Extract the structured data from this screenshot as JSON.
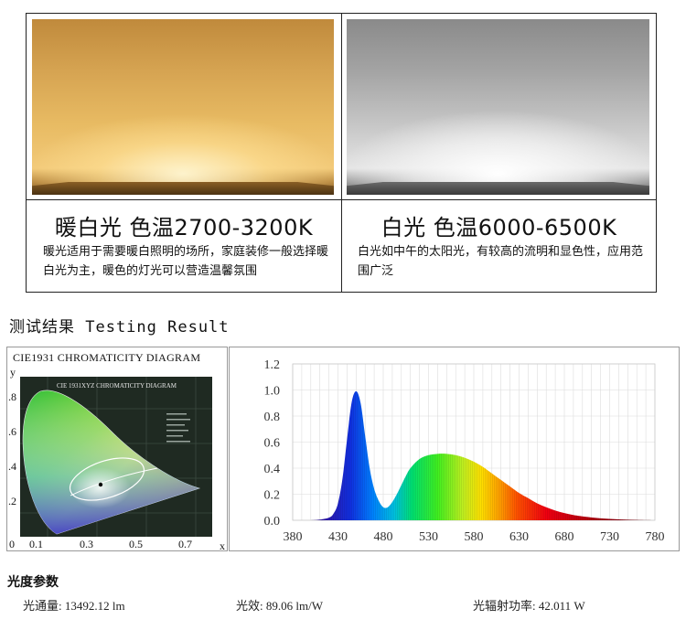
{
  "comparison": {
    "warm": {
      "title": "暖白光 色温2700-3200K",
      "description": "暖光适用于需要暖白照明的场所，家庭装修一般选择暖白光为主，暖色的灯光可以营造温馨氛围"
    },
    "cool": {
      "title": "白光 色温6000-6500K",
      "description": "白光如中午的太阳光，有较高的流明和显色性，应用范围广泛"
    }
  },
  "result_heading": "测试结果 Testing Result",
  "cie": {
    "title": "CIE1931 CHROMATICITY DIAGRAM",
    "inner_title": "CIE 1931XYZ CHROMATICITY DIAGRAM",
    "ylabel": "y",
    "xlabel": "x",
    "yticks": [
      ".8",
      ".6",
      ".4",
      ".2"
    ],
    "xticks": [
      "0",
      "0.1",
      "0.3",
      "0.5",
      "0.7"
    ]
  },
  "chart_data": {
    "type": "area",
    "title": "",
    "xlabel": "",
    "ylabel": "",
    "xlim": [
      380,
      780
    ],
    "ylim": [
      0,
      1.2
    ],
    "x_ticks": [
      380,
      430,
      480,
      530,
      580,
      630,
      680,
      730,
      780
    ],
    "y_ticks": [
      "0.0",
      "0.2",
      "0.4",
      "0.6",
      "0.8",
      "1.0",
      "1.2"
    ],
    "grid": true,
    "series": [
      {
        "x": [
          380,
          400,
          410,
          420,
          425,
          430,
          435,
          440,
          445,
          450,
          455,
          460,
          465,
          470,
          475,
          480,
          485,
          490,
          495,
          500,
          505,
          510,
          520,
          530,
          540,
          550,
          560,
          570,
          580,
          590,
          600,
          610,
          620,
          630,
          640,
          650,
          660,
          670,
          680,
          690,
          700,
          720,
          740,
          760,
          780
        ],
        "y": [
          0.0,
          0.0,
          0.005,
          0.02,
          0.05,
          0.13,
          0.32,
          0.62,
          0.9,
          0.99,
          0.9,
          0.65,
          0.4,
          0.24,
          0.15,
          0.1,
          0.1,
          0.14,
          0.2,
          0.27,
          0.34,
          0.4,
          0.47,
          0.5,
          0.51,
          0.51,
          0.5,
          0.48,
          0.45,
          0.41,
          0.36,
          0.31,
          0.26,
          0.21,
          0.17,
          0.13,
          0.1,
          0.075,
          0.055,
          0.04,
          0.03,
          0.015,
          0.007,
          0.003,
          0.0
        ]
      }
    ]
  },
  "params": {
    "heading": "光度参数",
    "flux": "光通量: 13492.12 lm",
    "efficacy": "光效: 89.06 lm/W",
    "radiant_power": "光辐射功率: 42.011 W"
  }
}
